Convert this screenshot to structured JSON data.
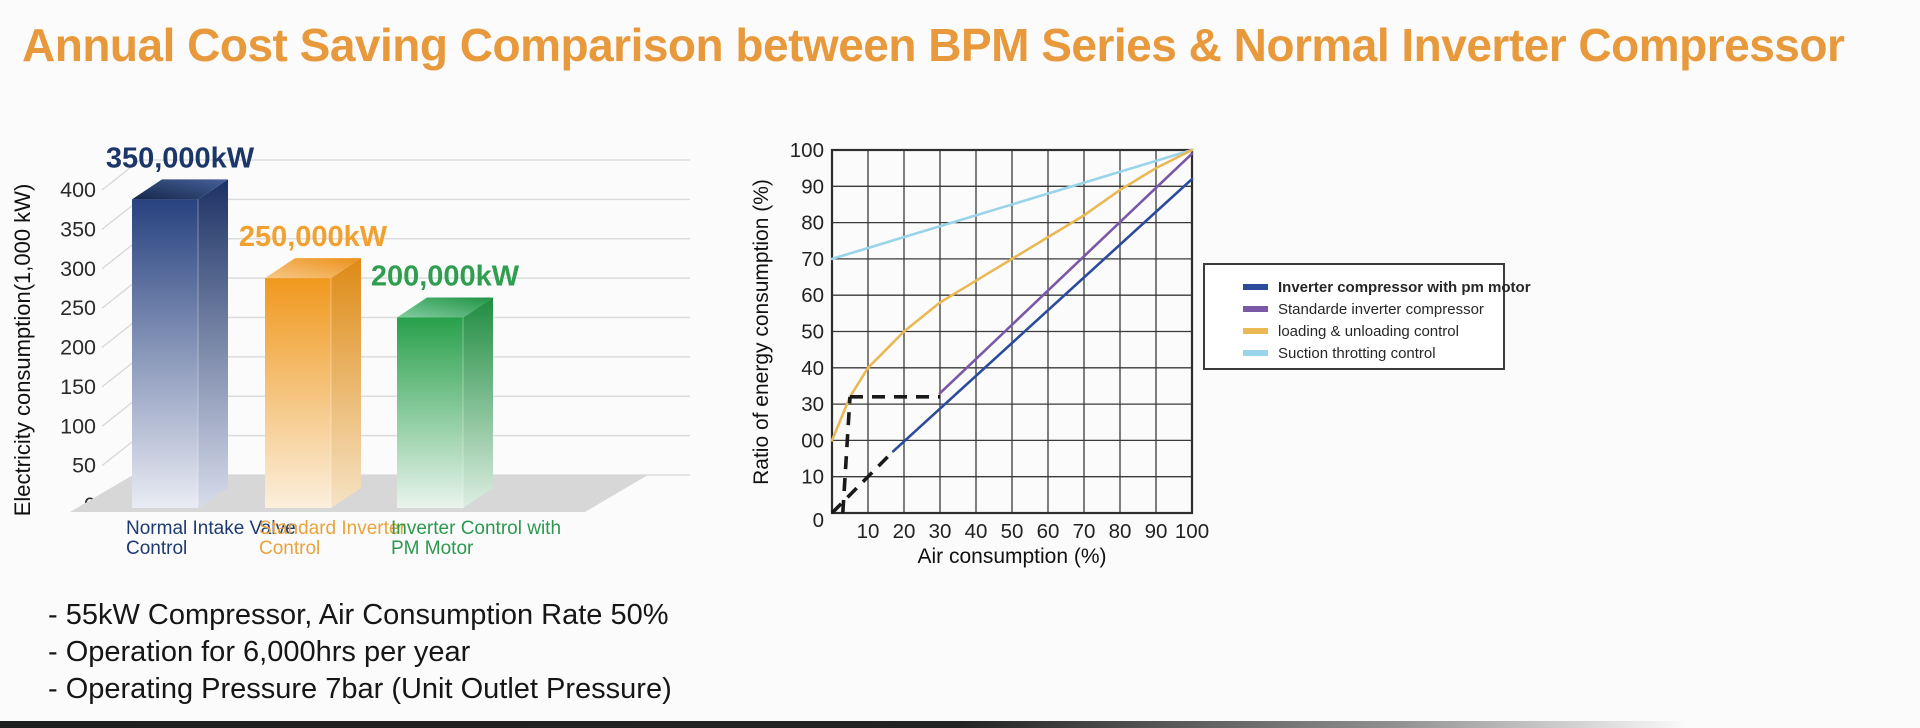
{
  "page": {
    "title": "Annual Cost Saving Comparison between BPM Series & Normal Inverter Compressor",
    "title_color": "#E8993B"
  },
  "notes": {
    "items": [
      "- 55kW Compressor, Air Consumption Rate 50%",
      "- Operation for 6,000hrs per year",
      "- Operating Pressure 7bar (Unit Outlet Pressure)"
    ]
  },
  "chart_data": [
    {
      "type": "bar",
      "style": "3d",
      "title": "",
      "xlabel": "",
      "ylabel": "Electricity consumption(1,000 kW)",
      "ylim": [
        0,
        400
      ],
      "yticks": [
        0,
        50,
        100,
        150,
        200,
        250,
        300,
        350,
        400
      ],
      "grid": true,
      "categories": [
        [
          "Normal Intake Valve",
          "Control"
        ],
        [
          "Standard Inverter",
          "Control"
        ],
        [
          "Inverter Control with",
          "PM Motor"
        ]
      ],
      "values": [
        350,
        250,
        200
      ],
      "value_labels": [
        "350,000kW",
        "250,000kW",
        "200,000kW"
      ],
      "bars": [
        {
          "label_color": "#1E3A72",
          "value_color": "#1C3667",
          "front": [
            "#27427F",
            "#EAECF4"
          ],
          "side": [
            "#1C3265",
            "#D7DCEB"
          ],
          "top": [
            "#152849",
            "#46619B"
          ]
        },
        {
          "label_color": "#E8A33C",
          "value_color": "#F2A130",
          "front": [
            "#F0981D",
            "#FBEFDD"
          ],
          "side": [
            "#DE8A15",
            "#F6E3C4"
          ],
          "top": [
            "#F7C887",
            "#ED901A"
          ]
        },
        {
          "label_color": "#2C9850",
          "value_color": "#2F9E50",
          "front": [
            "#28A04B",
            "#E9F4EC"
          ],
          "side": [
            "#1F8C40",
            "#DDEEE2"
          ],
          "top": [
            "#83CDA0",
            "#1F9344"
          ]
        }
      ]
    },
    {
      "type": "line",
      "title": "",
      "xlabel": "Air consumption (%)",
      "ylabel": "Ratio of energy consumption (%)",
      "xlim": [
        0,
        100
      ],
      "ylim": [
        0,
        100
      ],
      "xticks": [
        0,
        10,
        20,
        30,
        40,
        50,
        60,
        70,
        80,
        90,
        100
      ],
      "ytick_labels": [
        "0",
        "10",
        "00",
        "30",
        "40",
        "50",
        "60",
        "70",
        "80",
        "90",
        "100"
      ],
      "grid": true,
      "legend_position": "right",
      "series": [
        {
          "name": "Inverter compressor with pm motor",
          "color": "#2B4B9B",
          "points": [
            [
              17,
              17
            ],
            [
              100,
              92
            ]
          ]
        },
        {
          "name": "Standarde inverter compressor",
          "color": "#7B58A6",
          "points": [
            [
              30,
              33
            ],
            [
              100,
              99
            ]
          ]
        },
        {
          "name": "loading & unloading control",
          "color": "#EAB954",
          "points": [
            [
              0,
              20
            ],
            [
              5,
              32
            ],
            [
              10,
              40
            ],
            [
              20,
              50
            ],
            [
              30,
              58
            ],
            [
              40,
              64
            ],
            [
              50,
              70
            ],
            [
              60,
              76
            ],
            [
              70,
              82
            ],
            [
              80,
              89
            ],
            [
              90,
              95
            ],
            [
              100,
              100
            ]
          ]
        },
        {
          "name": "Suction throtting control",
          "color": "#9AD4EA",
          "points": [
            [
              0,
              70
            ],
            [
              100,
              100
            ]
          ]
        }
      ],
      "annotations": [
        {
          "style": "dashed",
          "color": "#1A1A1A",
          "points": [
            [
              0,
              0
            ],
            [
              17,
              17
            ]
          ]
        },
        {
          "style": "dashed",
          "color": "#1A1A1A",
          "points": [
            [
              3,
              0
            ],
            [
              5,
              32
            ]
          ]
        },
        {
          "style": "dashed",
          "color": "#1A1A1A",
          "points": [
            [
              5,
              32
            ],
            [
              30,
              32
            ]
          ]
        }
      ]
    }
  ]
}
